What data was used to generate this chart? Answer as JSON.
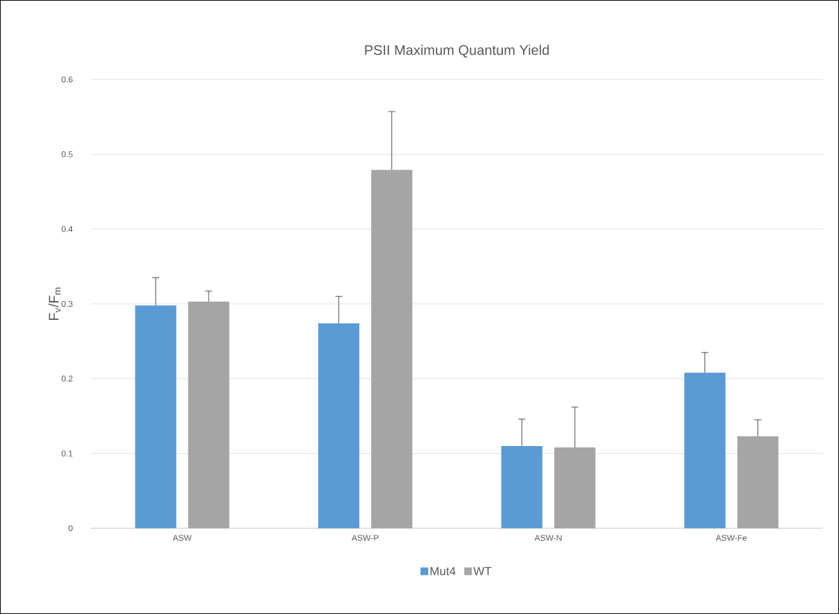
{
  "chart_data": {
    "type": "bar",
    "title": "PSII Maximum Quantum Yield",
    "ylabel": "F$_{v}$/F$_{m}$",
    "categories": [
      "ASW",
      "ASW-P",
      "ASW-N",
      "ASW-Fe"
    ],
    "series": [
      {
        "name": "Mut4",
        "color": "#5b9bd5",
        "values": [
          0.298,
          0.274,
          0.11,
          0.208
        ],
        "errors": [
          [
            0.298,
            0.335
          ],
          [
            0.274,
            0.31
          ],
          [
            0.11,
            0.146
          ],
          [
            0.208,
            0.235
          ]
        ]
      },
      {
        "name": "WT",
        "color": "#a5a5a5",
        "values": [
          0.303,
          0.479,
          0.108,
          0.123
        ],
        "errors": [
          [
            0.303,
            0.317
          ],
          [
            0.479,
            0.557
          ],
          [
            0.108,
            0.162
          ],
          [
            0.123,
            0.145
          ]
        ]
      }
    ],
    "ylim": [
      0,
      0.6
    ],
    "yticks": [
      0,
      0.1,
      0.2,
      0.3,
      0.4,
      0.5,
      0.6
    ],
    "grid": "y",
    "legend": "bottom"
  }
}
